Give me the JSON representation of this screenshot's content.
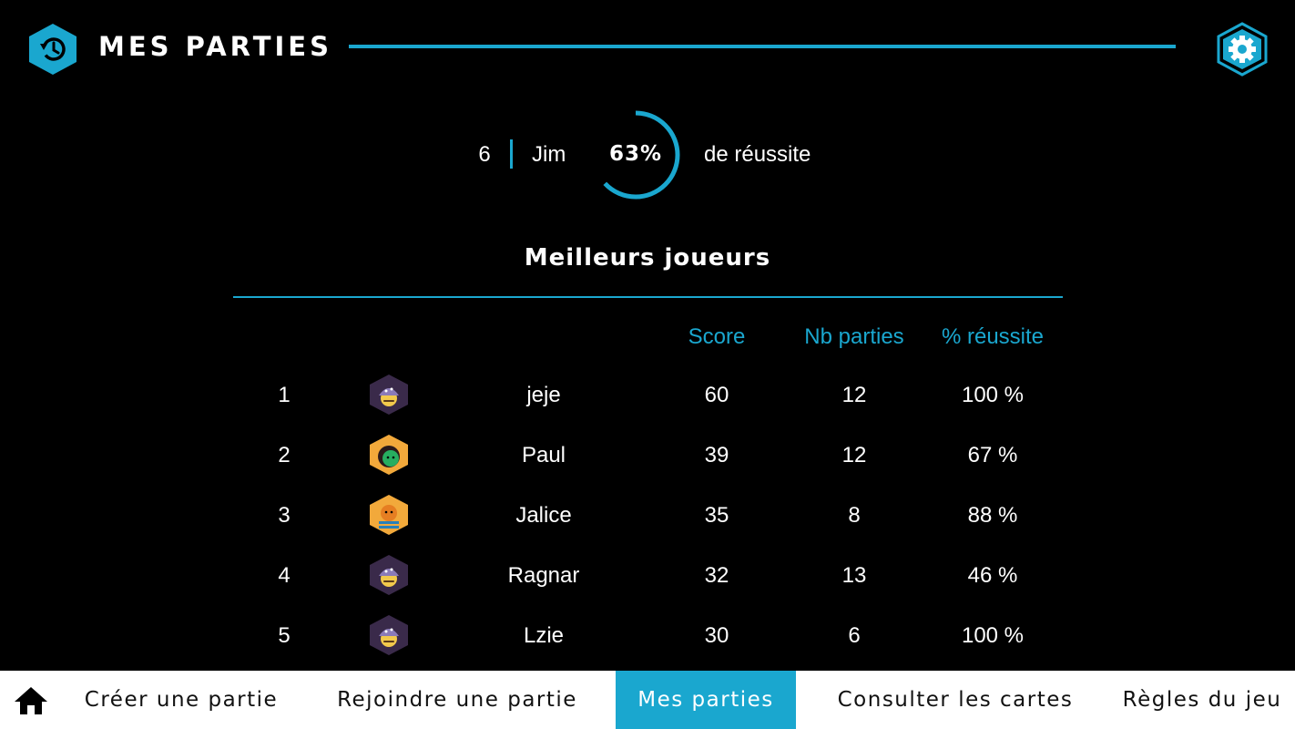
{
  "header": {
    "title": "MES PARTIES",
    "logo_icon": "history-icon",
    "settings_icon": "gear-icon",
    "accent_color": "#1aa7cf"
  },
  "summary": {
    "count": "6",
    "player_name": "Jim",
    "success_percent": 63,
    "success_text": "63%",
    "success_label": "de réussite"
  },
  "leaderboard": {
    "title": "Meilleurs joueurs",
    "columns": {
      "score": "Score",
      "games": "Nb parties",
      "rate": "% réussite"
    },
    "rows": [
      {
        "rank": "1",
        "avatar": "wizard-purple",
        "name": "jeje",
        "score": "60",
        "games": "12",
        "rate": "100 %"
      },
      {
        "rank": "2",
        "avatar": "green-face-orange",
        "name": "Paul",
        "score": "39",
        "games": "12",
        "rate": "67 %"
      },
      {
        "rank": "3",
        "avatar": "sailor-orange",
        "name": "Jalice",
        "score": "35",
        "games": "8",
        "rate": "88 %"
      },
      {
        "rank": "4",
        "avatar": "wizard-purple",
        "name": "Ragnar",
        "score": "32",
        "games": "13",
        "rate": "46 %"
      },
      {
        "rank": "5",
        "avatar": "wizard-purple",
        "name": "Lzie",
        "score": "30",
        "games": "6",
        "rate": "100 %"
      }
    ]
  },
  "nav": {
    "home_icon": "home-icon",
    "items": [
      {
        "label": "Créer une partie",
        "active": false
      },
      {
        "label": "Rejoindre une partie",
        "active": false
      },
      {
        "label": "Mes parties",
        "active": true
      },
      {
        "label": "Consulter les cartes",
        "active": false
      },
      {
        "label": "Règles du jeu",
        "active": false
      }
    ]
  }
}
